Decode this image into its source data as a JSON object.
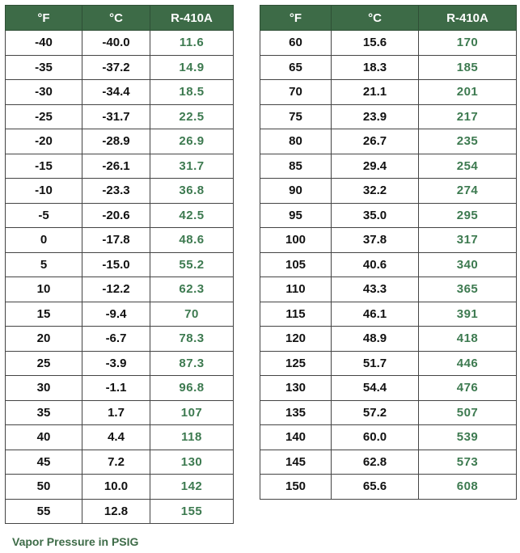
{
  "headers": {
    "f": "°F",
    "c": "°C",
    "p": "R-410A"
  },
  "table_left": {
    "rows": [
      {
        "f": "-40",
        "c": "-40.0",
        "p": "11.6"
      },
      {
        "f": "-35",
        "c": "-37.2",
        "p": "14.9"
      },
      {
        "f": "-30",
        "c": "-34.4",
        "p": "18.5"
      },
      {
        "f": "-25",
        "c": "-31.7",
        "p": "22.5"
      },
      {
        "f": "-20",
        "c": "-28.9",
        "p": "26.9"
      },
      {
        "f": "-15",
        "c": "-26.1",
        "p": "31.7"
      },
      {
        "f": "-10",
        "c": "-23.3",
        "p": "36.8"
      },
      {
        "f": "-5",
        "c": "-20.6",
        "p": "42.5"
      },
      {
        "f": "0",
        "c": "-17.8",
        "p": "48.6"
      },
      {
        "f": "5",
        "c": "-15.0",
        "p": "55.2"
      },
      {
        "f": "10",
        "c": "-12.2",
        "p": "62.3"
      },
      {
        "f": "15",
        "c": "-9.4",
        "p": "70"
      },
      {
        "f": "20",
        "c": "-6.7",
        "p": "78.3"
      },
      {
        "f": "25",
        "c": "-3.9",
        "p": "87.3"
      },
      {
        "f": "30",
        "c": "-1.1",
        "p": "96.8"
      },
      {
        "f": "35",
        "c": "1.7",
        "p": "107"
      },
      {
        "f": "40",
        "c": "4.4",
        "p": "118"
      },
      {
        "f": "45",
        "c": "7.2",
        "p": "130"
      },
      {
        "f": "50",
        "c": "10.0",
        "p": "142"
      },
      {
        "f": "55",
        "c": "12.8",
        "p": "155"
      }
    ]
  },
  "table_right": {
    "rows": [
      {
        "f": "60",
        "c": "15.6",
        "p": "170"
      },
      {
        "f": "65",
        "c": "18.3",
        "p": "185"
      },
      {
        "f": "70",
        "c": "21.1",
        "p": "201"
      },
      {
        "f": "75",
        "c": "23.9",
        "p": "217"
      },
      {
        "f": "80",
        "c": "26.7",
        "p": "235"
      },
      {
        "f": "85",
        "c": "29.4",
        "p": "254"
      },
      {
        "f": "90",
        "c": "32.2",
        "p": "274"
      },
      {
        "f": "95",
        "c": "35.0",
        "p": "295"
      },
      {
        "f": "100",
        "c": "37.8",
        "p": "317"
      },
      {
        "f": "105",
        "c": "40.6",
        "p": "340"
      },
      {
        "f": "110",
        "c": "43.3",
        "p": "365"
      },
      {
        "f": "115",
        "c": "46.1",
        "p": "391"
      },
      {
        "f": "120",
        "c": "48.9",
        "p": "418"
      },
      {
        "f": "125",
        "c": "51.7",
        "p": "446"
      },
      {
        "f": "130",
        "c": "54.4",
        "p": "476"
      },
      {
        "f": "135",
        "c": "57.2",
        "p": "507"
      },
      {
        "f": "140",
        "c": "60.0",
        "p": "539"
      },
      {
        "f": "145",
        "c": "62.8",
        "p": "573"
      },
      {
        "f": "150",
        "c": "65.6",
        "p": "608"
      }
    ]
  },
  "caption": "Vapor Pressure in PSIG",
  "colors": {
    "header_bg": "#3d6b47",
    "header_text": "#ffffff",
    "pressure_text": "#3d7a50",
    "caption_text": "#3d6b47"
  }
}
